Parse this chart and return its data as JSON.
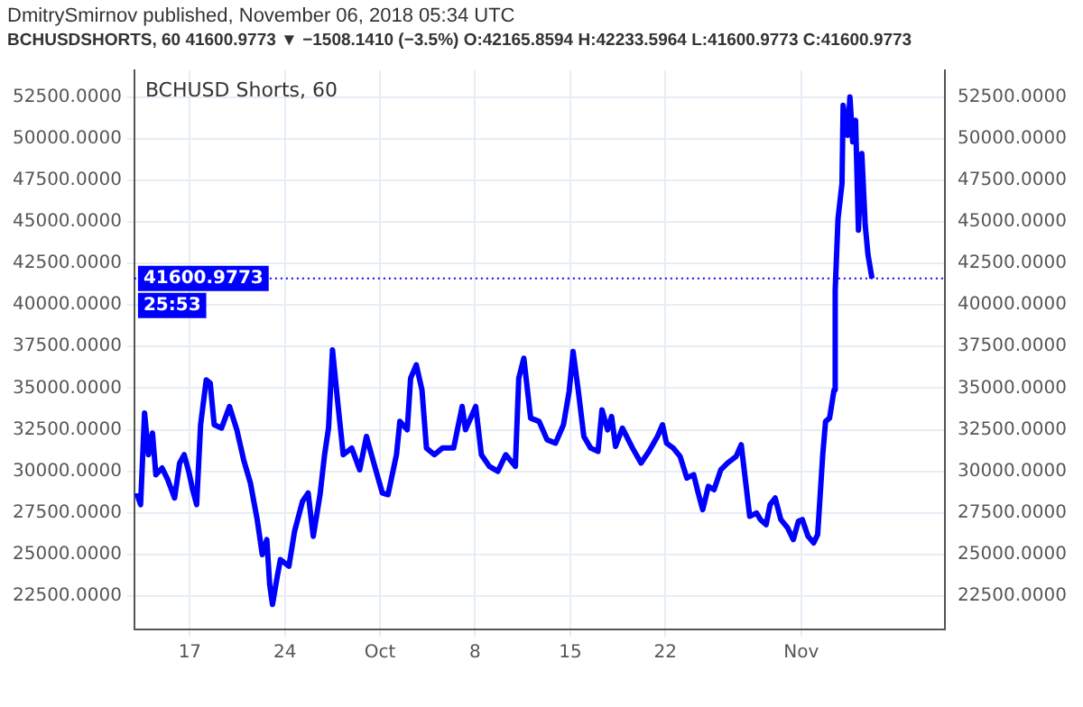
{
  "chart_data": {
    "type": "line",
    "title": "BCHUSD Shorts, 60",
    "subtitle": "BCHUSDSHORTS, 60 41600.9773 ▼ −1508.1410 (−3.5%) O:42165.8594 H:42233.5964 L:41600.9773 C:41600.9773",
    "annotations": [
      "DmitrySmirnov published, November 06, 2018 05:34 UTC",
      "25:53"
    ],
    "x": [
      "2018-09-13T02:00",
      "2018-09-13T09:00",
      "2018-09-13T16:00",
      "2018-09-13T23:00",
      "2018-09-14T06:00",
      "2018-09-14T12:00",
      "2018-09-14T23:00",
      "2018-09-15T09:00",
      "2018-09-15T21:00",
      "2018-09-16T06:00",
      "2018-09-16T14:00",
      "2018-09-16T22:00",
      "2018-09-17T05:00",
      "2018-09-17T12:00",
      "2018-09-17T19:00",
      "2018-09-18T05:00",
      "2018-09-18T12:00",
      "2018-09-18T19:00",
      "2018-09-19T08:00",
      "2018-09-19T22:00",
      "2018-09-20T11:00",
      "2018-09-20T23:00",
      "2018-09-21T11:00",
      "2018-09-21T23:00",
      "2018-09-22T08:00",
      "2018-09-22T16:00",
      "2018-09-22T21:00",
      "2018-09-23T02:00",
      "2018-09-23T10:00",
      "2018-09-23T16:00",
      "2018-09-24T07:00",
      "2018-09-24T17:00",
      "2018-09-25T07:00",
      "2018-09-25T17:00",
      "2018-09-26T02:00",
      "2018-09-26T14:00",
      "2018-09-26T22:00",
      "2018-09-27T05:00",
      "2018-09-27T12:00",
      "2018-09-27T22:00",
      "2018-09-28T07:00",
      "2018-09-28T22:00",
      "2018-09-29T12:00",
      "2018-09-30T00:00",
      "2018-09-30T13:00",
      "2018-10-01T04:00",
      "2018-10-01T14:00",
      "2018-10-02T05:00",
      "2018-10-02T11:00",
      "2018-10-03T00:00",
      "2018-10-03T06:00",
      "2018-10-03T16:00",
      "2018-10-04T02:00",
      "2018-10-04T10:00",
      "2018-10-05T00:00",
      "2018-10-05T14:00",
      "2018-10-06T10:00",
      "2018-10-07T01:00",
      "2018-10-07T07:00",
      "2018-10-08T01:00",
      "2018-10-08T11:00",
      "2018-10-09T01:00",
      "2018-10-09T16:00",
      "2018-10-10T06:00",
      "2018-10-10T23:00",
      "2018-10-11T05:00",
      "2018-10-11T14:00",
      "2018-10-12T02:00",
      "2018-10-12T17:00",
      "2018-10-13T07:00",
      "2018-10-13T22:00",
      "2018-10-14T12:00",
      "2018-10-14T22:00",
      "2018-10-15T05:00",
      "2018-10-15T14:00",
      "2018-10-16T00:00",
      "2018-10-16T12:00",
      "2018-10-17T01:00",
      "2018-10-17T08:00",
      "2018-10-17T18:00",
      "2018-10-18T01:00",
      "2018-10-18T08:00",
      "2018-10-18T20:00",
      "2018-10-19T14:00",
      "2018-10-20T05:00",
      "2018-10-20T19:00",
      "2018-10-21T10:00",
      "2018-10-21T19:00",
      "2018-10-22T02:00",
      "2018-10-22T14:00",
      "2018-10-23T02:00",
      "2018-10-23T14:00",
      "2018-10-24T02:00",
      "2018-10-24T10:00",
      "2018-10-24T18:00",
      "2018-10-25T04:00",
      "2018-10-25T14:00",
      "2018-10-26T02:00",
      "2018-10-26T14:00",
      "2018-10-27T05:00",
      "2018-10-27T14:00",
      "2018-10-27T22:00",
      "2018-10-28T05:00",
      "2018-10-28T17:00",
      "2018-10-29T00:00",
      "2018-10-29T10:00",
      "2018-10-29T17:00",
      "2018-10-30T02:00",
      "2018-10-30T12:00",
      "2018-10-31T00:00",
      "2018-10-31T10:00",
      "2018-10-31T19:00",
      "2018-11-01T02:00",
      "2018-11-01T12:00",
      "2018-11-01T22:00",
      "2018-11-02T05:00",
      "2018-11-02T14:00",
      "2018-11-02T19:00",
      "2018-11-03T02:00",
      "2018-11-03T10:00",
      "2018-11-03T12:00",
      "2018-11-03T17:00",
      "2018-11-04T00:00",
      "2018-11-04T02:00",
      "2018-11-04T10:00",
      "2018-11-04T14:00",
      "2018-11-04T19:00",
      "2018-11-05T00:00",
      "2018-11-05T05:00",
      "2018-11-05T11:00",
      "2018-11-05T17:00",
      "2018-11-05T22:00",
      "2018-11-06T05:00"
    ],
    "series": [
      {
        "color": "#0000ff",
        "values": [
          28700,
          28000,
          33500,
          31000,
          32300,
          29800,
          30200,
          29500,
          28400,
          30500,
          31000,
          30000,
          28900,
          28000,
          32800,
          35500,
          35300,
          32800,
          32600,
          33900,
          32500,
          30700,
          29300,
          27100,
          25000,
          25900,
          23200,
          22000,
          23600,
          24700,
          24300,
          26400,
          28200,
          28700,
          26100,
          28600,
          31000,
          32600,
          37300,
          33900,
          31000,
          31400,
          30100,
          32100,
          30500,
          28700,
          28600,
          31000,
          33000,
          32500,
          35600,
          36400,
          34900,
          31400,
          31000,
          31400,
          31400,
          33900,
          32500,
          33900,
          31000,
          30300,
          30000,
          31000,
          30300,
          35600,
          36800,
          33200,
          33000,
          31900,
          31700,
          32800,
          34800,
          37200,
          34900,
          32100,
          31400,
          31200,
          33700,
          32500,
          33300,
          31500,
          32600,
          31400,
          30500,
          31200,
          32100,
          32800,
          31700,
          31400,
          30900,
          29600,
          29800,
          28700,
          27700,
          29100,
          28900,
          30100,
          30500,
          30900,
          31600,
          29300,
          27300,
          27500,
          27100,
          26800,
          28000,
          28400,
          27100,
          26600,
          25900,
          27000,
          27100,
          26100,
          25700,
          26200,
          31000,
          33000,
          33200,
          34900,
          40900,
          45200,
          47300,
          52000,
          50200,
          52500,
          49800,
          51100,
          44500,
          49100,
          44800,
          43000,
          41600.9773
        ]
      }
    ],
    "xlim": [
      "2018-09-12T22:00",
      "2018-11-11T14:00"
    ],
    "xticks": [
      {
        "value": "2018-09-17",
        "label": "17"
      },
      {
        "value": "2018-09-24",
        "label": "24"
      },
      {
        "value": "2018-10-01",
        "label": "Oct"
      },
      {
        "value": "2018-10-08",
        "label": "8"
      },
      {
        "value": "2018-10-15",
        "label": "15"
      },
      {
        "value": "2018-10-22",
        "label": "22"
      },
      {
        "value": "2018-11-01",
        "label": "Nov"
      }
    ],
    "ylim": [
      20500,
      54100
    ],
    "yticks": [
      {
        "value": 22500,
        "label": "22500.0000"
      },
      {
        "value": 25000,
        "label": "25000.0000"
      },
      {
        "value": 27500,
        "label": "27500.0000"
      },
      {
        "value": 30000,
        "label": "30000.0000"
      },
      {
        "value": 32500,
        "label": "32500.0000"
      },
      {
        "value": 35000,
        "label": "35000.0000"
      },
      {
        "value": 37500,
        "label": "37500.0000"
      },
      {
        "value": 40000,
        "label": "40000.0000"
      },
      {
        "value": 42500,
        "label": "42500.0000"
      },
      {
        "value": 45000,
        "label": "45000.0000"
      },
      {
        "value": 47500,
        "label": "47500.0000"
      },
      {
        "value": 50000,
        "label": "50000.0000"
      },
      {
        "value": 52500,
        "label": "52500.0000"
      }
    ],
    "y2lim": [
      20500,
      54100
    ],
    "y2ticks": [
      {
        "value": 22500,
        "label": "22500.0000"
      },
      {
        "value": 25000,
        "label": "25000.0000"
      },
      {
        "value": 27500,
        "label": "27500.0000"
      },
      {
        "value": 30000,
        "label": "30000.0000"
      },
      {
        "value": 32500,
        "label": "32500.0000"
      },
      {
        "value": 35000,
        "label": "35000.0000"
      },
      {
        "value": 37500,
        "label": "37500.0000"
      },
      {
        "value": 40000,
        "label": "40000.0000"
      },
      {
        "value": 42500,
        "label": "42500.0000"
      },
      {
        "value": 45000,
        "label": "45000.0000"
      },
      {
        "value": 47500,
        "label": "47500.0000"
      },
      {
        "value": 50000,
        "label": "50000.0000"
      },
      {
        "value": 52500,
        "label": "52500.0000"
      }
    ],
    "ref_lines": [
      {
        "axis": "y",
        "value": 41600.9773,
        "label": "41600.9773",
        "color": "#0000ff",
        "line_style": "dotted"
      }
    ],
    "grid": true,
    "legend": false,
    "marker": "none",
    "line_style": "solid"
  }
}
